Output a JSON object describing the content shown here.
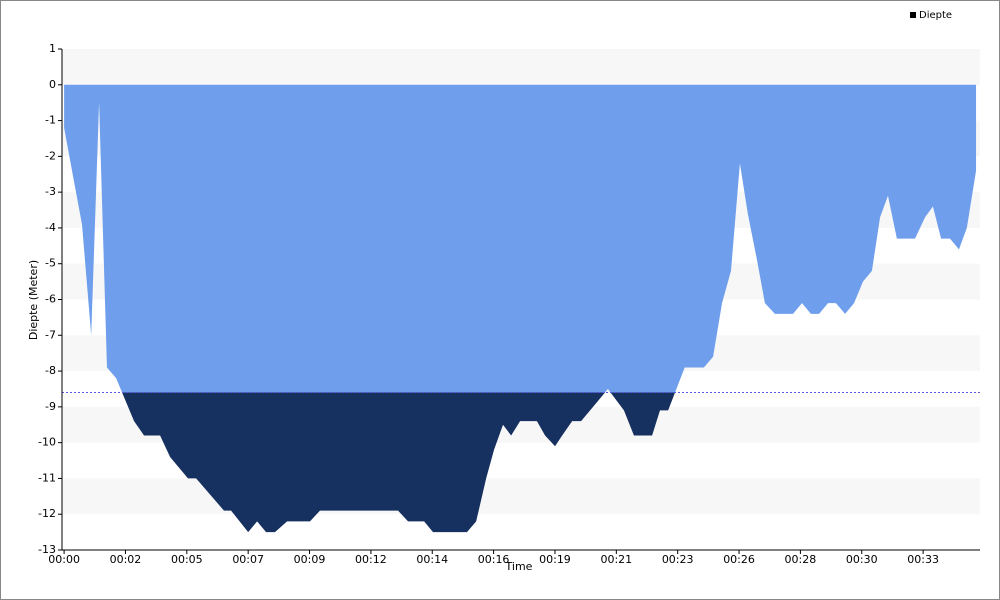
{
  "chart_data": {
    "type": "area",
    "x_label": "Time",
    "y_label": "Diepte (Meter)",
    "threshold": -8.6,
    "threshold_color": "#16305f",
    "threshold_line_color": "#5a5ae0",
    "legend": "top-right",
    "grid_bands": true,
    "xlim": [
      -0.08,
      34.83
    ],
    "ylim": [
      -13,
      1
    ],
    "xticks": [
      {
        "value": 0,
        "label": "00:00"
      },
      {
        "value": 2.333,
        "label": "00:02"
      },
      {
        "value": 4.667,
        "label": "00:05"
      },
      {
        "value": 7,
        "label": "00:07"
      },
      {
        "value": 9.333,
        "label": "00:09"
      },
      {
        "value": 11.667,
        "label": "00:12"
      },
      {
        "value": 14,
        "label": "00:14"
      },
      {
        "value": 16.333,
        "label": "00:16"
      },
      {
        "value": 18.667,
        "label": "00:19"
      },
      {
        "value": 21,
        "label": "00:21"
      },
      {
        "value": 23.333,
        "label": "00:23"
      },
      {
        "value": 25.667,
        "label": "00:26"
      },
      {
        "value": 28,
        "label": "00:28"
      },
      {
        "value": 30.333,
        "label": "00:30"
      },
      {
        "value": 32.667,
        "label": "00:33"
      }
    ],
    "yticks": [
      1,
      0,
      -1,
      -2,
      -3,
      -4,
      -5,
      -6,
      -7,
      -8,
      -9,
      -10,
      -11,
      -12,
      -13
    ],
    "x": [
      0,
      0.3,
      0.68,
      1.03,
      1.33,
      1.63,
      1.98,
      2.32,
      2.66,
      3.04,
      3.65,
      4.03,
      4.71,
      5.02,
      6.08,
      6.35,
      7,
      7.34,
      7.68,
      8.02,
      8.48,
      9.35,
      9.73,
      12.7,
      13.08,
      13.69,
      14.03,
      15.32,
      15.67,
      16.05,
      16.35,
      16.69,
      17,
      17.34,
      17.98,
      18.29,
      18.67,
      18.94,
      19.32,
      19.66,
      20.23,
      20.68,
      21.29,
      21.67,
      22.36,
      22.66,
      22.97,
      23.6,
      24.33,
      24.68,
      25.02,
      25.36,
      25.7,
      26,
      26.35,
      26.65,
      27.03,
      27.72,
      28.06,
      28.4,
      28.71,
      29.05,
      29.35,
      29.7,
      30.04,
      30.38,
      30.72,
      31.03,
      31.33,
      31.67,
      32.36,
      32.74,
      33.04,
      33.35,
      33.69,
      34.03,
      34.33,
      34.68
    ],
    "series": [
      {
        "name": "Diepte",
        "color": "#6f9fec",
        "values": [
          -1.2,
          -2.4,
          -3.9,
          -7,
          -0.5,
          -7.9,
          -8.2,
          -8.8,
          -9.4,
          -9.8,
          -9.8,
          -10.4,
          -11,
          -11,
          -11.9,
          -11.9,
          -12.5,
          -12.2,
          -12.5,
          -12.5,
          -12.2,
          -12.2,
          -11.9,
          -11.9,
          -12.2,
          -12.2,
          -12.5,
          -12.5,
          -12.2,
          -11,
          -10.2,
          -9.5,
          -9.8,
          -9.4,
          -9.4,
          -9.8,
          -10.1,
          -9.8,
          -9.4,
          -9.4,
          -8.9,
          -8.5,
          -9.1,
          -9.8,
          -9.8,
          -9.1,
          -9.1,
          -7.9,
          -7.9,
          -7.6,
          -6.1,
          -5.2,
          -2.2,
          -3.6,
          -4.9,
          -6.1,
          -6.4,
          -6.4,
          -6.1,
          -6.4,
          -6.4,
          -6.1,
          -6.1,
          -6.4,
          -6.1,
          -5.5,
          -5.2,
          -3.7,
          -3.1,
          -4.3,
          -4.3,
          -3.7,
          -3.4,
          -4.3,
          -4.3,
          -4.6,
          -4,
          -2.4
        ]
      }
    ]
  }
}
